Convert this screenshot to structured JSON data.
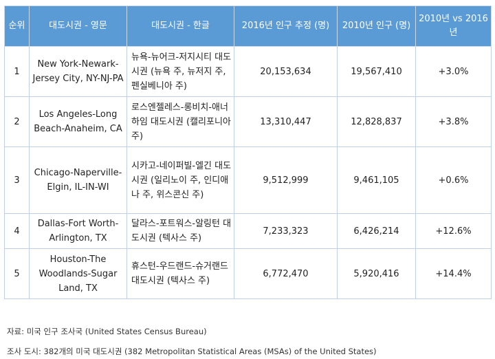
{
  "table": {
    "headers": [
      "순위",
      "대도시권 - 영문",
      "대도시권 - 한글",
      "2016년 인구 추정 (명)",
      "2010년 인구 (명)",
      "2010년 vs 2016년"
    ],
    "rows": [
      {
        "rank": "1",
        "english": "New York-Newark-Jersey City, NY-NJ-PA",
        "korean": "뉴욕-뉴어크-저지시티 대도시권 (뉴욕 주, 뉴저지 주, 펜실베니아 주)",
        "pop2016": "20,153,634",
        "pop2010": "19,567,410",
        "change": "+3.0%"
      },
      {
        "rank": "2",
        "english": "Los Angeles-Long Beach-Anaheim, CA",
        "korean": "로스엔젤레스-롱비치-애너하임 대도시권 (캘리포니아 주)",
        "pop2016": "13,310,447",
        "pop2010": "12,828,837",
        "change": "+3.8%"
      },
      {
        "rank": "3",
        "english": "Chicago-Naperville-Elgin, IL-IN-WI",
        "korean": "시카고-네이퍼빌-엘긴 대도시권 (일리노이 주, 인디애나 주, 위스콘신 주)",
        "pop2016": "9,512,999",
        "pop2010": "9,461,105",
        "change": "+0.6%"
      },
      {
        "rank": "4",
        "english": "Dallas-Fort Worth-Arlington, TX",
        "korean": "달라스-포트워스-알링턴 대도시권 (텍사스 주)",
        "pop2016": "7,233,323",
        "pop2010": "6,426,214",
        "change": "+12.6%"
      },
      {
        "rank": "5",
        "english": "Houston-The Woodlands-Sugar Land, TX",
        "korean": "휴스턴-우드랜드-슈거랜드 대도시권 (텍사스 주)",
        "pop2016": "6,772,470",
        "pop2010": "5,920,416",
        "change": "+14.4%"
      }
    ]
  },
  "notes": {
    "source": "자료: 미국 인구 조사국 (United States Census Bureau)",
    "scope": "조사 도시: 382개의 미국 대도시권 (382 Metropolitan Statistical Areas (MSAs) of the United States)"
  },
  "colors": {
    "header_bg": "#5b9bd5",
    "header_text": "#ffffff",
    "border": "#bfd0e6"
  }
}
